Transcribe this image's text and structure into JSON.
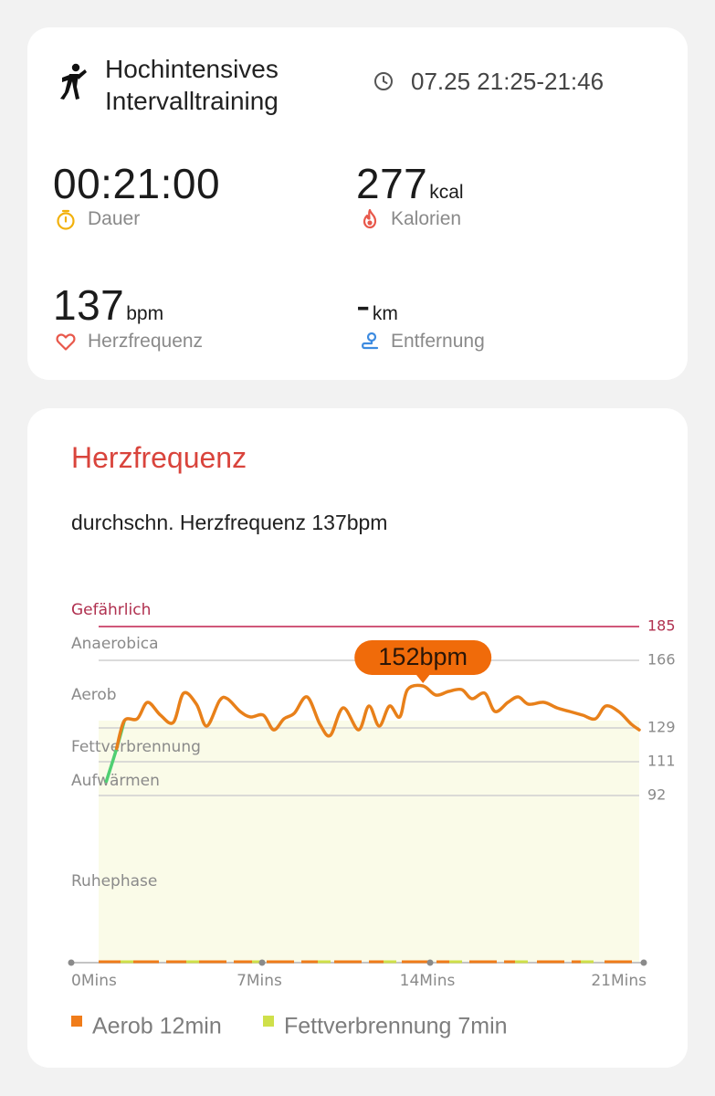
{
  "summary": {
    "workout_title": "Hochintensives Intervalltraining",
    "time_range": "07.25 21:25-21:46",
    "duration": {
      "value": "00:21:00",
      "label": "Dauer"
    },
    "calories": {
      "value": "277",
      "unit": "kcal",
      "label": "Kalorien"
    },
    "heart_rate": {
      "value": "137",
      "unit": "bpm",
      "label": "Herzfrequenz"
    },
    "distance": {
      "value": "-",
      "unit": "km",
      "label": "Entfernung"
    }
  },
  "heart_rate_card": {
    "title": "Herzfrequenz",
    "average_text": "durchschn. Herzfrequenz 137bpm",
    "legend": [
      {
        "label": "Aerob 12min",
        "color": "#f07c1a"
      },
      {
        "label": "Fettverbrennung 7min",
        "color": "#cfe04a"
      }
    ]
  },
  "colors": {
    "accent_red": "#d9443c",
    "line_orange": "#e8801a",
    "line_green": "#4fcf72",
    "danger_line": "#d0587a",
    "fill_yellow": "#fafbe8",
    "tooltip_orange": "#f06b0a"
  },
  "chart_data": {
    "type": "line",
    "x_unit": "Mins",
    "x_tick_labels": [
      "0Mins",
      "7Mins",
      "14Mins",
      "21Mins"
    ],
    "xlim": [
      0,
      21
    ],
    "ylim": [
      55,
      190
    ],
    "zones": [
      {
        "label": "Gefährlich",
        "threshold": 185
      },
      {
        "label": "Anaerobica",
        "threshold": 166
      },
      {
        "label": "Aerob",
        "threshold": 129
      },
      {
        "label": "Fettverbrennung",
        "threshold": 111
      },
      {
        "label": "Aufwärmen",
        "threshold": 92
      },
      {
        "label": "Ruhephase",
        "threshold": null
      }
    ],
    "threshold_labels": [
      "185",
      "166",
      "129",
      "111",
      "92"
    ],
    "peak_label": "152bpm",
    "peak": {
      "x": 12.6,
      "y": 152
    },
    "series": [
      {
        "x": [
          0.3,
          0.7,
          1.0,
          1.5,
          1.9,
          2.4,
          2.9,
          3.3,
          3.8,
          4.2,
          4.7,
          5.0,
          5.5,
          5.9,
          6.4,
          6.8,
          7.2,
          7.6,
          8.1,
          8.6,
          9.0,
          9.5,
          10.1,
          10.5,
          10.9,
          11.3,
          11.7,
          12.0,
          12.6,
          13.1,
          13.6,
          14.1,
          14.5,
          15.0,
          15.4,
          15.9,
          16.3,
          16.7,
          17.3,
          17.8,
          18.3,
          18.8,
          19.3,
          19.7,
          20.2,
          20.7,
          21.0
        ],
        "y": [
          100,
          118,
          133,
          134,
          143,
          136,
          132,
          148,
          142,
          130,
          144,
          145,
          138,
          135,
          136,
          128,
          134,
          137,
          146,
          131,
          125,
          140,
          128,
          141,
          130,
          141,
          135,
          150,
          152,
          147,
          149,
          150,
          145,
          148,
          138,
          143,
          146,
          142,
          143,
          140,
          138,
          136,
          134,
          141,
          138,
          131,
          128
        ]
      }
    ]
  }
}
